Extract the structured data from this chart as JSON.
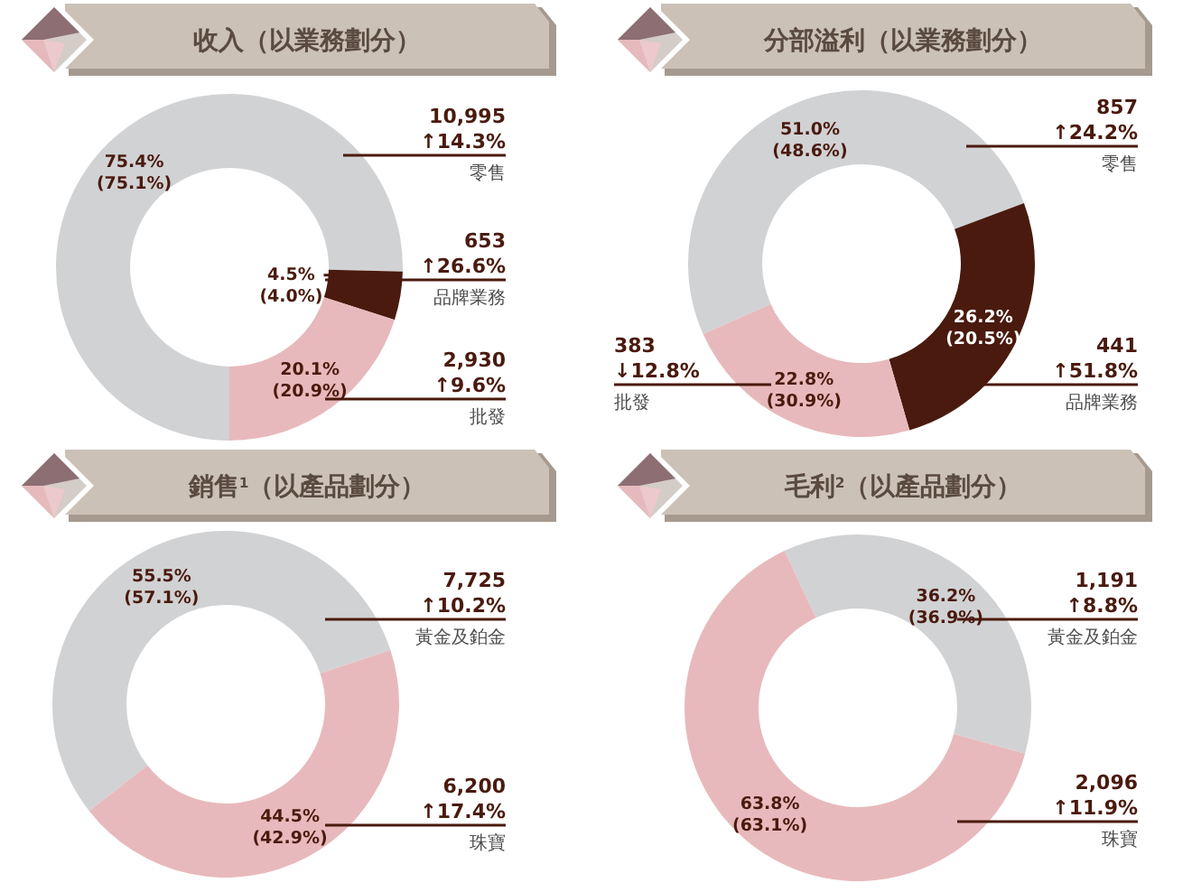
{
  "chart_data": [
    {
      "type": "donut",
      "title": "收入（以業務劃分）",
      "categories": [
        "零售",
        "品牌業務",
        "批發"
      ],
      "values": [
        75.4,
        4.5,
        20.1
      ],
      "colors": [
        "#d1d2d4",
        "#4a1a0e",
        "#e8b9bc"
      ],
      "value_labels": [
        "75.4%\n(75.1%)",
        "4.5%\n(4.0%)",
        "20.1%\n(20.9%)"
      ],
      "annotations": [
        "10,995\n↑14.3%",
        "653\n↑26.6%",
        "2,930\n↑9.6%"
      ]
    },
    {
      "type": "donut",
      "title": "分部溢利（以業務劃分）",
      "categories": [
        "零售",
        "品牌業務",
        "批發"
      ],
      "values": [
        51.0,
        26.2,
        22.8
      ],
      "colors": [
        "#d1d2d4",
        "#4a1a0e",
        "#e8b9bc"
      ],
      "value_labels": [
        "51.0%\n(48.6%)",
        "26.2%\n(20.5%)",
        "22.8%\n(30.9%)"
      ],
      "annotations": [
        "857\n↑24.2%",
        "441\n↑51.8%",
        "383\n↓12.8%"
      ]
    },
    {
      "type": "donut",
      "title": "銷售$^{1}$（以產品劃分）",
      "categories": [
        "黃金及鉑金",
        "珠寶"
      ],
      "values": [
        55.5,
        44.5
      ],
      "colors": [
        "#d1d2d4",
        "#e8b9bc"
      ],
      "value_labels": [
        "55.5%\n(57.1%)",
        "44.5%\n(42.9%)"
      ],
      "annotations": [
        "7,725\n↑10.2%",
        "6,200\n↑17.4%"
      ]
    },
    {
      "type": "donut",
      "title": "毛利$^{2}$（以產品劃分）",
      "categories": [
        "黃金及鉑金",
        "珠寶"
      ],
      "values": [
        36.2,
        63.8
      ],
      "colors": [
        "#d1d2d4",
        "#e8b9bc"
      ],
      "value_labels": [
        "36.2%\n(36.9%)",
        "63.8%\n(63.1%)"
      ],
      "annotations": [
        "1,191\n↑8.8%",
        "2,096\n↑11.9%"
      ]
    }
  ]
}
